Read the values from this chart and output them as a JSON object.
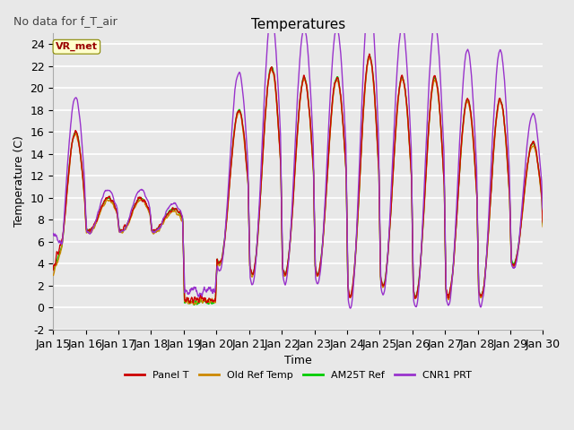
{
  "title": "Temperatures",
  "no_data_text": "No data for f_T_air",
  "vr_met_label": "VR_met",
  "xlabel": "Time",
  "ylabel": "Temperature (C)",
  "xlim": [
    0,
    15
  ],
  "ylim": [
    -2,
    25
  ],
  "yticks": [
    -2,
    0,
    2,
    4,
    6,
    8,
    10,
    12,
    14,
    16,
    18,
    20,
    22,
    24
  ],
  "xtick_labels": [
    "Jan 15",
    "Jan 16",
    "Jan 17",
    "Jan 18",
    "Jan 19",
    "Jan 20",
    "Jan 21",
    "Jan 22",
    "Jan 23",
    "Jan 24",
    "Jan 25",
    "Jan 26",
    "Jan 27",
    "Jan 28",
    "Jan 29",
    "Jan 30"
  ],
  "series_colors": {
    "panel_t": "#cc0000",
    "old_ref": "#cc8800",
    "am25t": "#00cc00",
    "cnr1": "#9933cc"
  },
  "legend_labels": [
    "Panel T",
    "Old Ref Temp",
    "AM25T Ref",
    "CNR1 PRT"
  ],
  "background_color": "#e8e8e8",
  "grid_color": "#ffffff",
  "title_fontsize": 11,
  "axis_fontsize": 9,
  "tick_fontsize": 9,
  "linewidth": 1.0
}
